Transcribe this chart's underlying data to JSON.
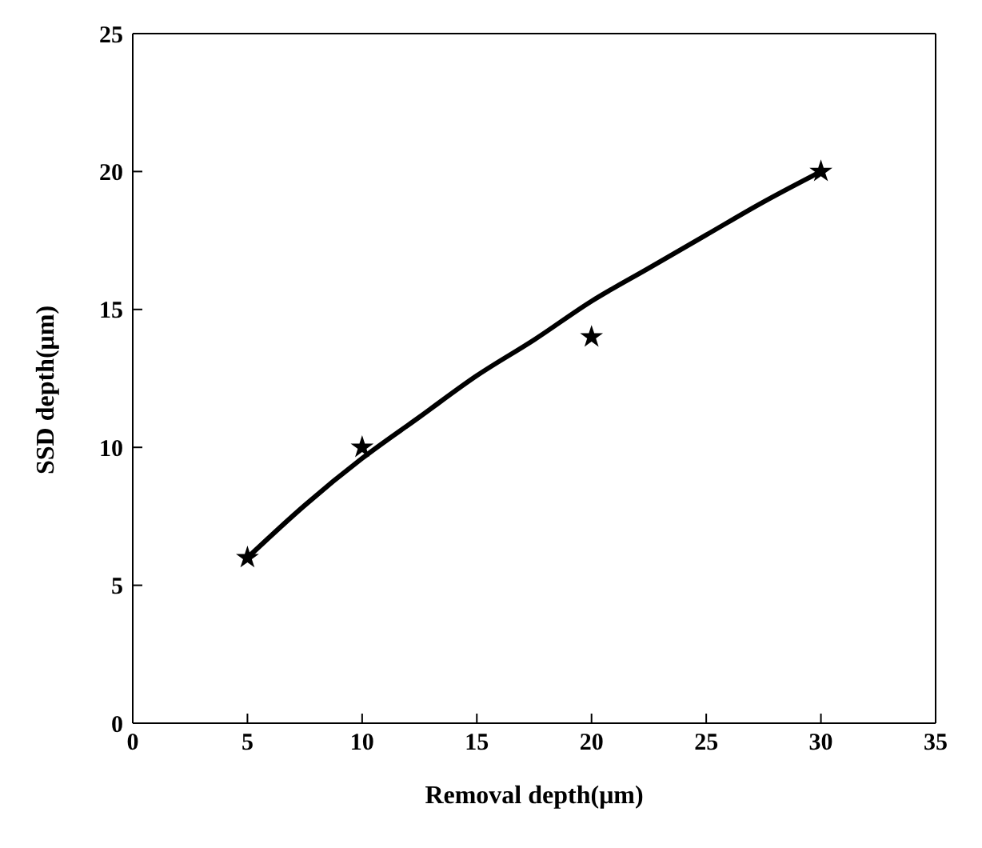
{
  "chart_data": {
    "type": "scatter",
    "xlabel": "Removal depth(μm)",
    "ylabel": "SSD depth(μm)",
    "xlim": [
      0,
      35
    ],
    "xticks": [
      0,
      5,
      10,
      15,
      20,
      25,
      30,
      35
    ],
    "ylim": [
      0,
      25
    ],
    "yticks": [
      0,
      5,
      10,
      15,
      20,
      25
    ],
    "series": [
      {
        "marker": "star",
        "color": "#000000",
        "x": [
          5,
          10,
          20,
          30
        ],
        "values": [
          6,
          10,
          14,
          20
        ]
      },
      {
        "type": "line",
        "marker": "none",
        "color": "#000000",
        "x": [
          5,
          7.5,
          10,
          12.5,
          15,
          17.5,
          20,
          22.5,
          25,
          27.5,
          30
        ],
        "values": [
          6,
          7.9,
          9.6,
          11.1,
          12.6,
          13.9,
          15.3,
          16.5,
          17.7,
          18.9,
          20
        ]
      }
    ]
  }
}
